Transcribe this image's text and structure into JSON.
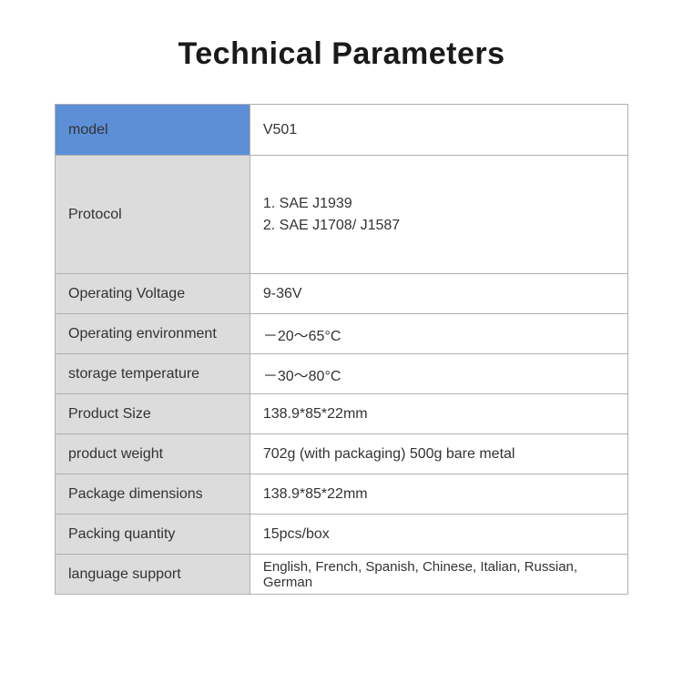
{
  "title": "Technical Parameters",
  "table": {
    "header_bg": "#5c8fd6",
    "label_bg": "#dcdcdc",
    "value_bg": "#ffffff",
    "border_color": "#b0b0b0",
    "rows": [
      {
        "label": "model",
        "value": "V501"
      },
      {
        "label": "Protocol",
        "value": "1. SAE J1939\n2. SAE J1708/ J1587"
      },
      {
        "label": "Operating Voltage",
        "value": "9-36V"
      },
      {
        "label": "Operating environment",
        "value": "－20～65°C"
      },
      {
        "label": "storage temperature",
        "value": "－30～80°C"
      },
      {
        "label": "Product Size",
        "value": "138.9*85*22mm"
      },
      {
        "label": "product weight",
        "value": "702g (with packaging)    500g bare metal"
      },
      {
        "label": "Package dimensions",
        "value": "138.9*85*22mm"
      },
      {
        "label": "Packing quantity",
        "value": "15pcs/box"
      },
      {
        "label": "language support",
        "value": "English, French, Spanish, Chinese, Italian, Russian, German"
      }
    ]
  }
}
